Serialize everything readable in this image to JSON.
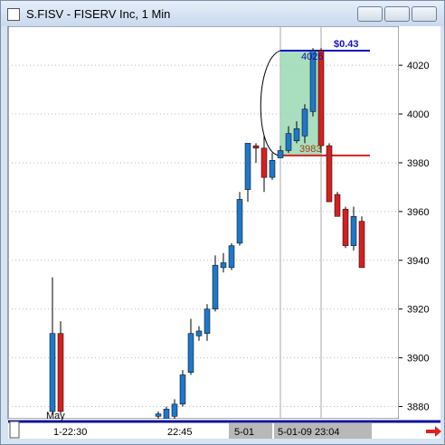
{
  "chart_data": {
    "type": "candlestick",
    "title": "S.FISV - FISERV Inc, 1 Min",
    "categories": [
      null,
      null,
      null,
      null,
      null,
      null,
      null,
      null,
      null,
      null,
      null,
      null,
      null,
      null,
      null,
      null,
      null,
      null,
      null,
      null,
      null,
      null,
      null,
      null,
      null,
      null,
      null,
      null,
      null,
      null,
      null,
      null,
      null,
      null,
      null,
      null,
      null,
      null,
      null
    ],
    "open": [
      3878,
      3910,
      null,
      null,
      null,
      null,
      null,
      null,
      null,
      null,
      null,
      null,
      null,
      3876,
      3875,
      3876,
      3881,
      3894,
      3909,
      3910,
      3920,
      3937,
      3937,
      3947,
      3969,
      3987,
      3986,
      3974,
      3982,
      3985,
      3989,
      3991,
      4001,
      4026,
      3987,
      3967,
      3961,
      3946,
      3956
    ],
    "high": [
      3933,
      3915,
      null,
      null,
      null,
      null,
      null,
      null,
      null,
      null,
      null,
      null,
      null,
      3878,
      3880,
      3883,
      3895,
      3916,
      3913,
      3922,
      3942,
      3943,
      3947,
      3968,
      3988,
      3988,
      3991,
      3984,
      3987,
      3995,
      3997,
      4004,
      4027,
      4027,
      3988,
      3968,
      3962,
      3962,
      3958
    ],
    "low": [
      3877,
      3877,
      null,
      null,
      null,
      null,
      null,
      null,
      null,
      null,
      null,
      null,
      null,
      3875,
      3875,
      3875,
      3880,
      3893,
      3907,
      3907,
      3919,
      3935,
      3936,
      3946,
      3964,
      3980,
      3968,
      3973,
      3982,
      3984,
      3988,
      3988,
      3999,
      3984,
      3964,
      3958,
      3945,
      3944,
      3937
    ],
    "close": [
      3910,
      3878,
      null,
      null,
      null,
      null,
      null,
      null,
      null,
      null,
      null,
      null,
      null,
      3877,
      3879,
      3881,
      3893,
      3910,
      3911,
      3920,
      3938,
      3939,
      3946,
      3965,
      3988,
      3986,
      3974,
      3981,
      3985,
      3992,
      3994,
      4002,
      4026,
      3987,
      3964,
      3958,
      3946,
      3958,
      3937
    ],
    "up_color": "#1f77c9",
    "down_color": "#d42020",
    "ylim": [
      3875,
      4036
    ],
    "yticks": [
      3880,
      3900,
      3920,
      3940,
      3960,
      3980,
      4000,
      4020
    ],
    "x_labels": [
      "May",
      "1-22:30",
      "22:45",
      "5-01",
      "5-01-09 23:04"
    ],
    "trade": {
      "entry": 3983,
      "exit": 4026,
      "profit_label": "$0.43"
    }
  }
}
